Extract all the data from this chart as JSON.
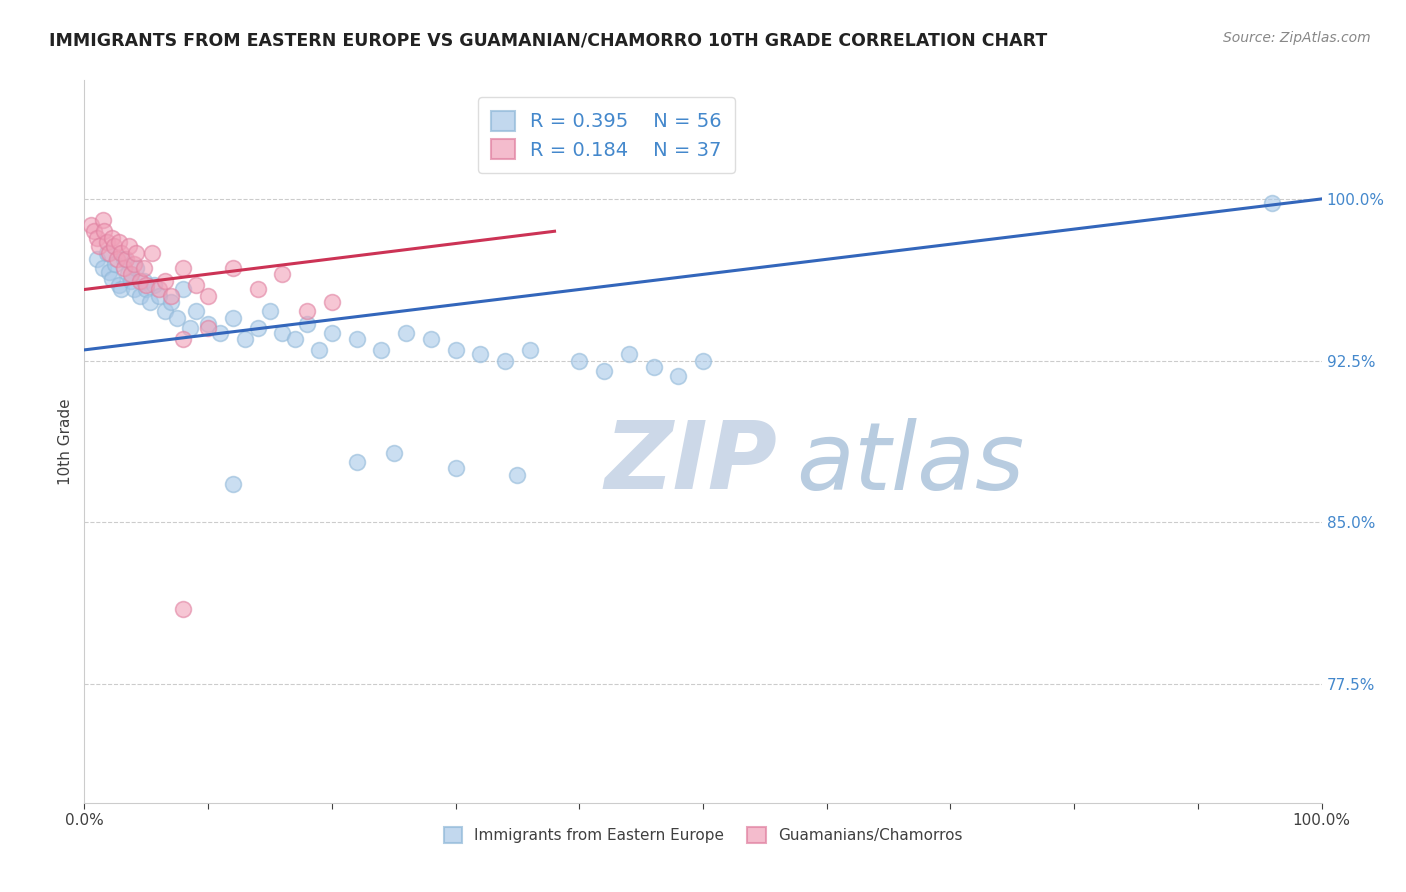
{
  "title": "IMMIGRANTS FROM EASTERN EUROPE VS GUAMANIAN/CHAMORRO 10TH GRADE CORRELATION CHART",
  "source_text": "Source: ZipAtlas.com",
  "ylabel": "10th Grade",
  "right_ytick_labels": [
    "77.5%",
    "85.0%",
    "92.5%",
    "100.0%"
  ],
  "right_ytick_values": [
    0.775,
    0.85,
    0.925,
    1.0
  ],
  "xlim": [
    0.0,
    1.0
  ],
  "ylim": [
    0.72,
    1.055
  ],
  "legend_R1": "0.395",
  "legend_N1": "56",
  "legend_R2": "0.184",
  "legend_N2": "37",
  "legend_label1": "Immigrants from Eastern Europe",
  "legend_label2": "Guamanians/Chamorros",
  "blue_color": "#a8c8e8",
  "pink_color": "#f0a0b8",
  "blue_edge_color": "#90b8d8",
  "pink_edge_color": "#e080a0",
  "blue_line_color": "#3366bb",
  "pink_line_color": "#cc3355",
  "title_color": "#222222",
  "source_color": "#888888",
  "right_label_color": "#4488cc",
  "watermark_color_zip": "#ccd8e8",
  "watermark_color_atlas": "#b8cce0",
  "background_color": "#ffffff",
  "blue_line_x0": 0.0,
  "blue_line_x1": 1.0,
  "blue_line_y0": 0.93,
  "blue_line_y1": 1.0,
  "pink_line_x0": 0.0,
  "pink_line_x1": 0.38,
  "pink_line_y0": 0.958,
  "pink_line_y1": 0.985,
  "blue_scatter_x": [
    0.01,
    0.015,
    0.018,
    0.02,
    0.022,
    0.025,
    0.028,
    0.03,
    0.032,
    0.035,
    0.038,
    0.04,
    0.042,
    0.045,
    0.048,
    0.05,
    0.053,
    0.056,
    0.06,
    0.065,
    0.07,
    0.075,
    0.08,
    0.085,
    0.09,
    0.1,
    0.11,
    0.12,
    0.13,
    0.14,
    0.15,
    0.16,
    0.17,
    0.18,
    0.19,
    0.2,
    0.22,
    0.24,
    0.26,
    0.28,
    0.3,
    0.32,
    0.34,
    0.36,
    0.4,
    0.42,
    0.44,
    0.46,
    0.48,
    0.5,
    0.12,
    0.22,
    0.25,
    0.3,
    0.35,
    0.96
  ],
  "blue_scatter_y": [
    0.972,
    0.968,
    0.975,
    0.966,
    0.963,
    0.97,
    0.96,
    0.958,
    0.972,
    0.965,
    0.962,
    0.958,
    0.968,
    0.955,
    0.962,
    0.958,
    0.952,
    0.96,
    0.955,
    0.948,
    0.952,
    0.945,
    0.958,
    0.94,
    0.948,
    0.942,
    0.938,
    0.945,
    0.935,
    0.94,
    0.948,
    0.938,
    0.935,
    0.942,
    0.93,
    0.938,
    0.935,
    0.93,
    0.938,
    0.935,
    0.93,
    0.928,
    0.925,
    0.93,
    0.925,
    0.92,
    0.928,
    0.922,
    0.918,
    0.925,
    0.868,
    0.878,
    0.882,
    0.875,
    0.872,
    0.998
  ],
  "pink_scatter_x": [
    0.005,
    0.008,
    0.01,
    0.012,
    0.015,
    0.016,
    0.018,
    0.02,
    0.022,
    0.024,
    0.026,
    0.028,
    0.03,
    0.032,
    0.034,
    0.036,
    0.038,
    0.04,
    0.042,
    0.045,
    0.048,
    0.05,
    0.055,
    0.06,
    0.065,
    0.07,
    0.08,
    0.09,
    0.1,
    0.12,
    0.14,
    0.16,
    0.2,
    0.08,
    0.1,
    0.18,
    0.08
  ],
  "pink_scatter_y": [
    0.988,
    0.985,
    0.982,
    0.978,
    0.99,
    0.985,
    0.98,
    0.975,
    0.982,
    0.978,
    0.972,
    0.98,
    0.975,
    0.968,
    0.972,
    0.978,
    0.965,
    0.97,
    0.975,
    0.962,
    0.968,
    0.96,
    0.975,
    0.958,
    0.962,
    0.955,
    0.968,
    0.96,
    0.955,
    0.968,
    0.958,
    0.965,
    0.952,
    0.935,
    0.94,
    0.948,
    0.81
  ]
}
